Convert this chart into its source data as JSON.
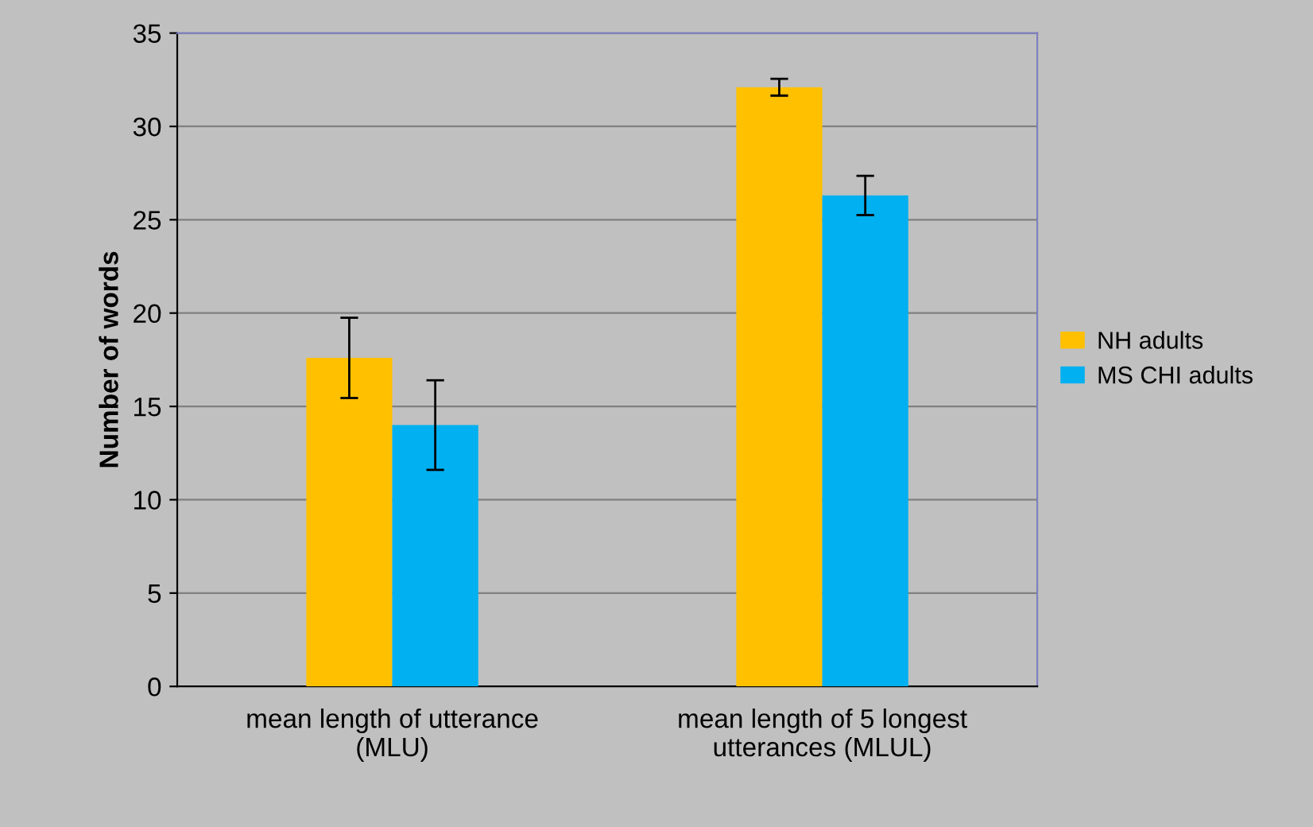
{
  "chart_data": {
    "type": "bar",
    "ylabel": "Number of words",
    "categories": [
      "mean length of utterance\n(MLU)",
      "mean length of 5 longest\nutterances (MLUL)"
    ],
    "series": [
      {
        "name": "NH adults",
        "color": "#ffc000",
        "values": [
          17.6,
          32.1
        ],
        "errors": [
          2.15,
          0.45
        ]
      },
      {
        "name": "MS CHI adults",
        "color": "#00b0f0",
        "values": [
          14.0,
          26.3
        ],
        "errors": [
          2.4,
          1.05
        ]
      }
    ],
    "ylim": [
      0,
      35
    ],
    "yticks": [
      0,
      5,
      10,
      15,
      20,
      25,
      30,
      35
    ],
    "grid": "y",
    "legend": "right"
  }
}
